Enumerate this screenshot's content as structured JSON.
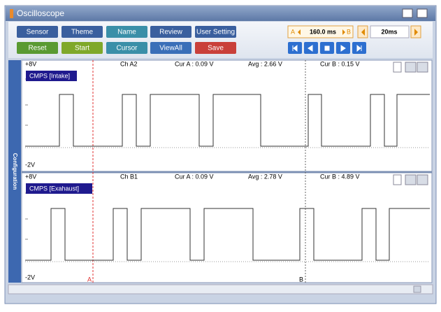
{
  "window": {
    "title": "Oscilloscope"
  },
  "toolbar": {
    "row1": [
      "Sensor",
      "Theme",
      "Name",
      "Review",
      "User Setting"
    ],
    "row2": [
      "Reset",
      "Start",
      "Cursor",
      "ViewAll",
      "Save"
    ]
  },
  "cursor_control": {
    "a": "A",
    "delta": "160.0 ms",
    "b": "B"
  },
  "timebase": "20ms",
  "side_tab": "Configuration",
  "panels": [
    {
      "top": "+8V",
      "channel": "Ch A2",
      "cur_a": "Cur A : 0.09 V",
      "avg": "Avg : 2.66 V",
      "cur_b": "Cur B : 0.15 V",
      "label": "CMPS [Intake]",
      "bottom": "-2V"
    },
    {
      "top": "+8V",
      "channel": "Ch B1",
      "cur_a": "Cur A : 0.09 V",
      "avg": "Avg : 2.78 V",
      "cur_b": "Cur B : 4.89 V",
      "label": "CMPS [Exahaust]",
      "bottom": "-2V"
    }
  ],
  "cursor_labels": {
    "a": "A",
    "b": "B"
  }
}
